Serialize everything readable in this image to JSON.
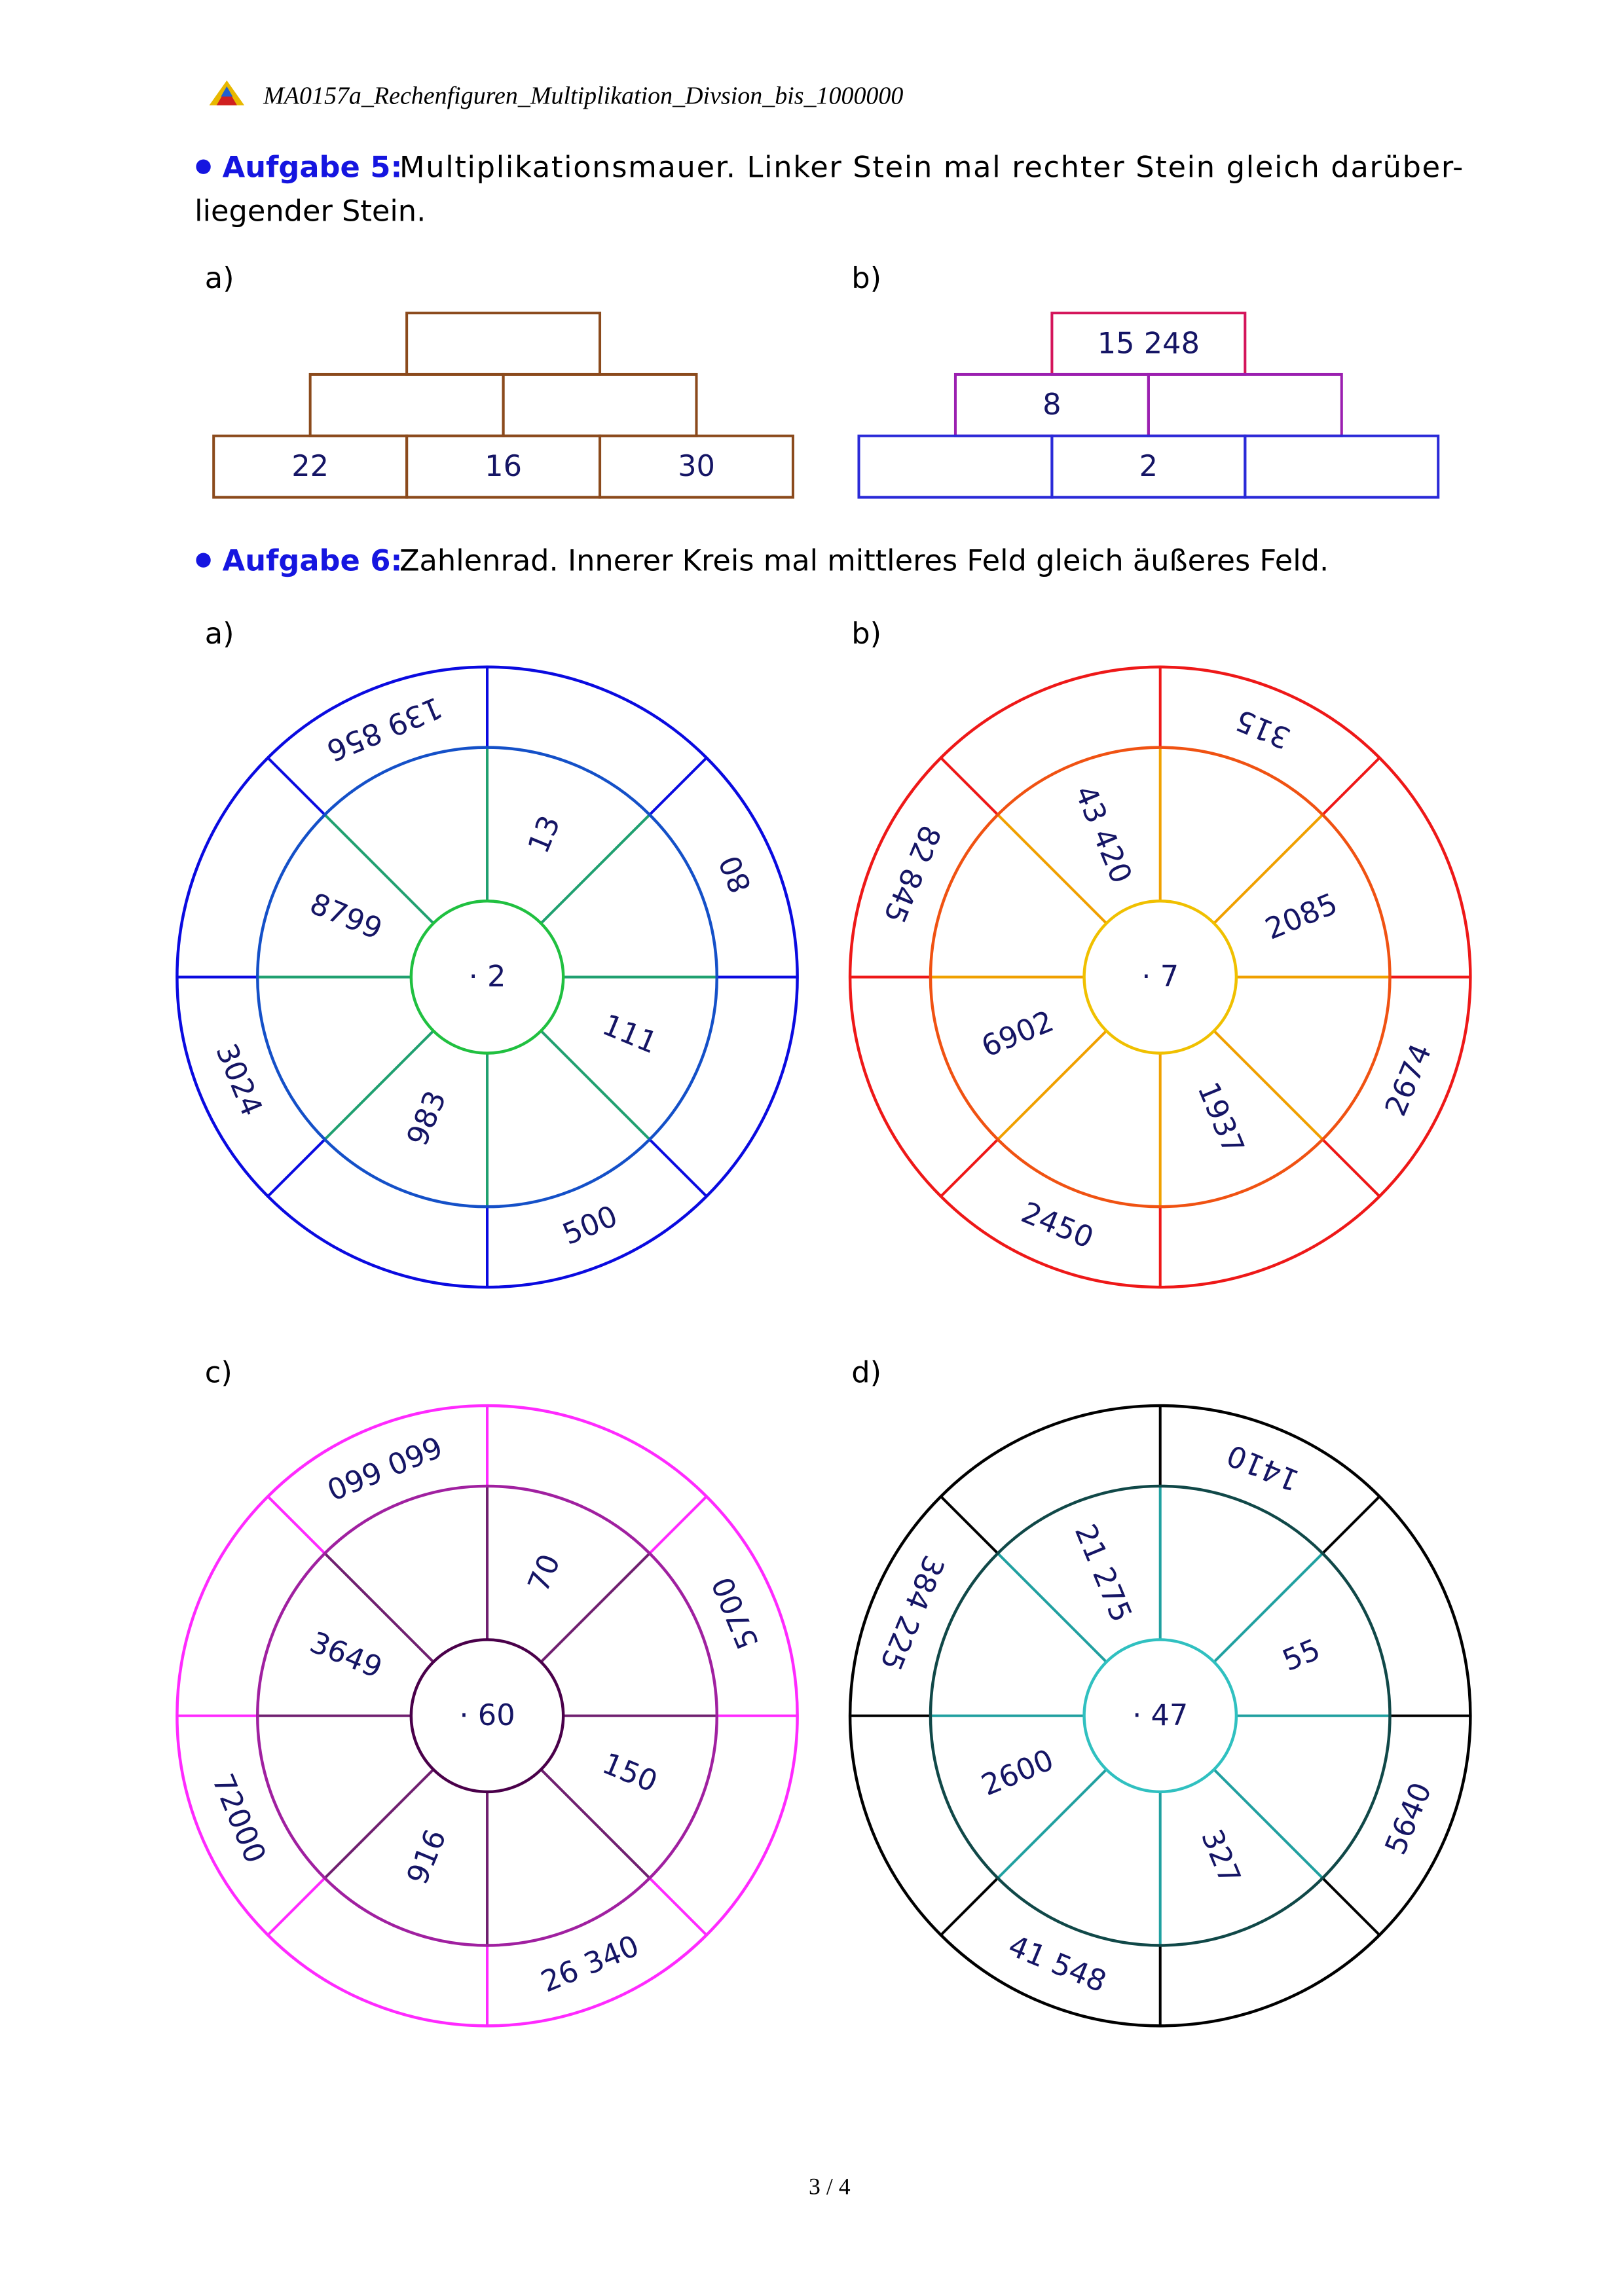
{
  "header": {
    "title": "MA0157a_Rechenfiguren_Multiplikation_Divsion_bis_1000000"
  },
  "task5": {
    "label": "Aufgabe 5:",
    "lines": [
      "Multiplikationsmauer. Linker Stein mal rechter Stein gleich darüber-",
      "liegender Stein."
    ],
    "walls": [
      {
        "label": "a)",
        "rows": [
          [
            null
          ],
          [
            null,
            null
          ],
          [
            "22",
            "16",
            "30"
          ]
        ]
      },
      {
        "label": "b)",
        "rows": [
          [
            "15 248"
          ],
          [
            "8",
            null
          ],
          [
            null,
            "2",
            null
          ]
        ]
      }
    ]
  },
  "task6": {
    "label": "Aufgabe 6:",
    "text": "Zahlenrad. Innerer Kreis mal mittleres Feld gleich äußeres Feld.",
    "wheels": [
      {
        "label": "a)",
        "center": "· 2",
        "middle": [
          "13",
          "111",
          "983",
          "8799"
        ],
        "outer": [
          "139 856",
          "80",
          "500",
          "3024"
        ]
      },
      {
        "label": "b)",
        "center": "· 7",
        "middle": [
          "43 420",
          "2085",
          "1937",
          "6902"
        ],
        "outer": [
          "315",
          "2674",
          "2450",
          "82 845"
        ]
      },
      {
        "label": "c)",
        "center": "· 60",
        "middle": [
          "70",
          "150",
          "916",
          "3649"
        ],
        "outer": [
          "660 660",
          "5700",
          "26 340",
          "72000"
        ]
      },
      {
        "label": "d)",
        "center": "· 47",
        "middle": [
          "21 275",
          "55",
          "327",
          "2600"
        ],
        "outer": [
          "1410",
          "5640",
          "41 548",
          "384 225"
        ]
      }
    ]
  },
  "footer": {
    "page": "3 / 4"
  }
}
